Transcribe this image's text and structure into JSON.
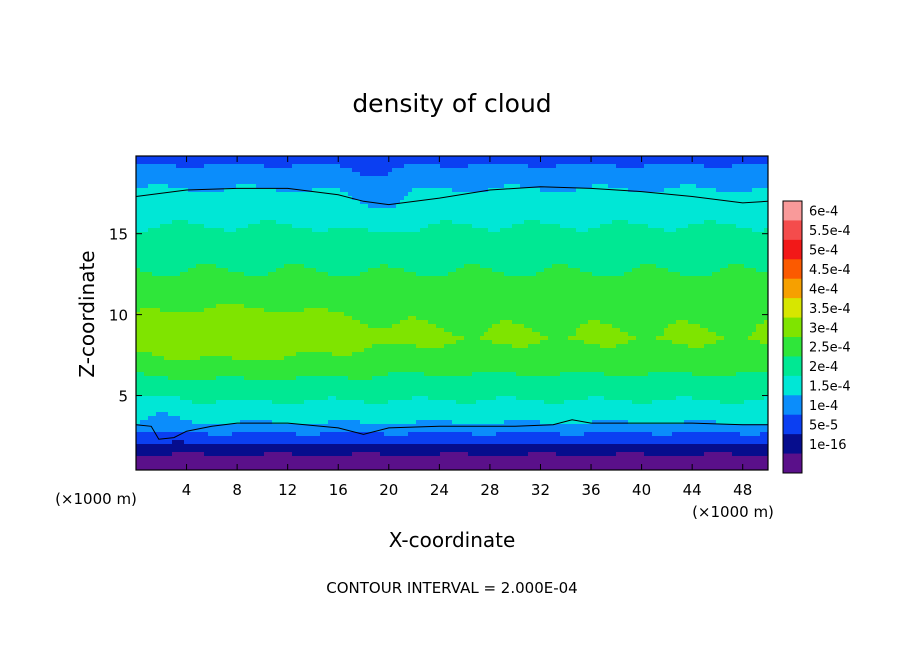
{
  "chart_data": {
    "type": "heatmap",
    "title": "density of cloud",
    "xlabel": "X-coordinate",
    "ylabel": "Z-coordinate",
    "x_unit_label": "(×1000 m)",
    "x_unit_label_right": "(×1000 m)",
    "footer": "CONTOUR INTERVAL = 2.000E-04",
    "xlim": [
      0,
      50
    ],
    "ylim": [
      0.4,
      19.8
    ],
    "x_ticks": [
      4,
      8,
      12,
      16,
      20,
      24,
      28,
      32,
      36,
      40,
      44,
      48
    ],
    "y_ticks": [
      5,
      10,
      15
    ],
    "colorbar_labels": [
      "6e-4",
      "5.5e-4",
      "5e-4",
      "4.5e-4",
      "4e-4",
      "3.5e-4",
      "3e-4",
      "2.5e-4",
      "2e-4",
      "1.5e-4",
      "1e-4",
      "5e-5",
      "1e-16"
    ],
    "colorbar_levels": [
      0.0006,
      0.00055,
      0.0005,
      0.00045,
      0.0004,
      0.00035,
      0.0003,
      0.00025,
      0.0002,
      0.00015,
      0.0001,
      5e-05,
      1e-16
    ],
    "colorbar_colors": [
      "#f99a9a",
      "#f44c4c",
      "#f21818",
      "#fb5a00",
      "#f6a000",
      "#d7e600",
      "#7fe400",
      "#2fe63a",
      "#00e893",
      "#00e7d6",
      "#0b8dfb",
      "#0b3ff2",
      "#060d8d",
      "#5a108a"
    ],
    "vertical_profile": [
      {
        "z": 0.4,
        "v": 1e-16
      },
      {
        "z": 1.0,
        "v": 3e-05
      },
      {
        "z": 1.5,
        "v": 6e-05
      },
      {
        "z": 2.3,
        "v": 0.00012
      },
      {
        "z": 3.3,
        "v": 0.0002
      },
      {
        "z": 5.0,
        "v": 0.00026
      },
      {
        "z": 7.0,
        "v": 0.00032
      },
      {
        "z": 8.5,
        "v": 0.000355
      },
      {
        "z": 10.0,
        "v": 0.00034
      },
      {
        "z": 12.0,
        "v": 0.00031
      },
      {
        "z": 14.0,
        "v": 0.00028
      },
      {
        "z": 15.5,
        "v": 0.00025
      },
      {
        "z": 17.0,
        "v": 0.000215
      },
      {
        "z": 17.8,
        "v": 0.0002
      },
      {
        "z": 19.0,
        "v": 0.00016
      },
      {
        "z": 19.8,
        "v": 0.00013
      }
    ],
    "contour_2e-4_upper": [
      [
        0,
        17.3
      ],
      [
        4,
        17.7
      ],
      [
        8,
        17.8
      ],
      [
        12,
        17.8
      ],
      [
        16,
        17.4
      ],
      [
        18,
        17.0
      ],
      [
        20,
        16.8
      ],
      [
        24,
        17.2
      ],
      [
        28,
        17.7
      ],
      [
        32,
        17.9
      ],
      [
        36,
        17.8
      ],
      [
        40,
        17.6
      ],
      [
        44,
        17.3
      ],
      [
        48,
        16.9
      ],
      [
        50,
        17.0
      ]
    ],
    "contour_2e-4_lower": [
      [
        0,
        3.2
      ],
      [
        1.2,
        3.1
      ],
      [
        1.8,
        2.3
      ],
      [
        3,
        2.4
      ],
      [
        4,
        2.8
      ],
      [
        6,
        3.1
      ],
      [
        8,
        3.3
      ],
      [
        12,
        3.3
      ],
      [
        16,
        3.0
      ],
      [
        18,
        2.6
      ],
      [
        20,
        3.0
      ],
      [
        24,
        3.1
      ],
      [
        30,
        3.1
      ],
      [
        33,
        3.2
      ],
      [
        34.5,
        3.5
      ],
      [
        36,
        3.3
      ],
      [
        40,
        3.3
      ],
      [
        44,
        3.3
      ],
      [
        48,
        3.2
      ],
      [
        50,
        3.2
      ]
    ]
  }
}
